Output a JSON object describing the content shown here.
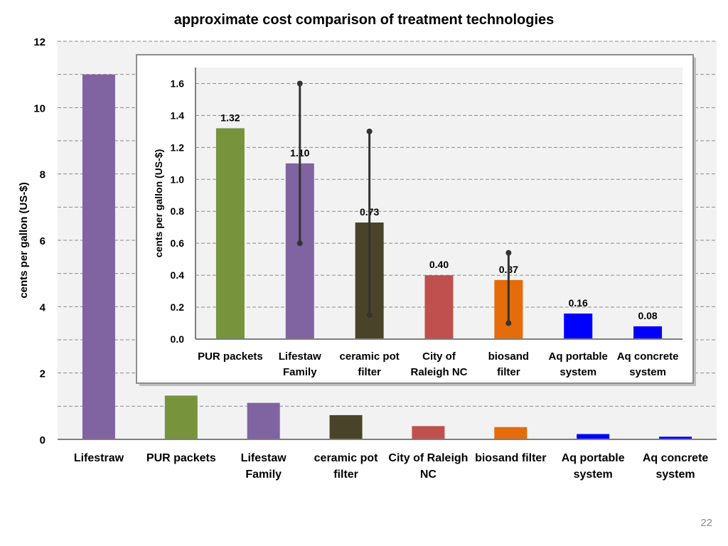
{
  "chart_data": [
    {
      "type": "bar",
      "title": "approximate cost comparison of treatment technologies",
      "ylabel": "cents per gallon (US-$)",
      "xlabel": "",
      "ylim": [
        0,
        12
      ],
      "yticks": [
        0,
        2,
        4,
        6,
        8,
        10,
        12
      ],
      "grid": true,
      "categories": [
        [
          "Lifestraw"
        ],
        [
          "PUR packets"
        ],
        [
          "Lifestaw",
          "Family"
        ],
        [
          "ceramic pot",
          "filter"
        ],
        [
          "City of Raleigh",
          "NC"
        ],
        [
          "biosand filter"
        ],
        [
          "Aq portable",
          "system"
        ],
        [
          "Aq concrete",
          "system"
        ]
      ],
      "values": [
        11.0,
        1.32,
        1.1,
        0.73,
        0.4,
        0.37,
        0.16,
        0.08
      ],
      "colors": [
        "#8064a2",
        "#77933c",
        "#8064a2",
        "#494429",
        "#c0504d",
        "#e46c0a",
        "#0000ff",
        "#0000ff"
      ]
    },
    {
      "type": "bar",
      "title": "",
      "ylabel": "cents per gallon (US-$)",
      "xlabel": "",
      "ylim": [
        0,
        1.7
      ],
      "yticks": [
        "0.0",
        "0.2",
        "0.4",
        "0.6",
        "0.8",
        "1.0",
        "1.2",
        "1.4",
        "1.6"
      ],
      "grid": true,
      "categories": [
        [
          "PUR packets"
        ],
        [
          "Lifestaw",
          "Family"
        ],
        [
          "ceramic pot",
          "filter"
        ],
        [
          "City of",
          "Raleigh NC"
        ],
        [
          "biosand",
          "filter"
        ],
        [
          "Aq portable",
          "system"
        ],
        [
          "Aq concrete",
          "system"
        ]
      ],
      "values": [
        1.32,
        1.1,
        0.73,
        0.4,
        0.37,
        0.16,
        0.08
      ],
      "data_labels": [
        "1.32",
        "1.10",
        "0.73",
        "0.40",
        "0.37",
        "0.16",
        "0.08"
      ],
      "error_bars": [
        null,
        [
          0.6,
          1.6
        ],
        [
          0.15,
          1.3
        ],
        null,
        [
          0.1,
          0.54
        ],
        null,
        null
      ],
      "colors": [
        "#77933c",
        "#8064a2",
        "#494429",
        "#c0504d",
        "#e46c0a",
        "#0000ff",
        "#0000ff"
      ]
    }
  ],
  "page_number": "22"
}
